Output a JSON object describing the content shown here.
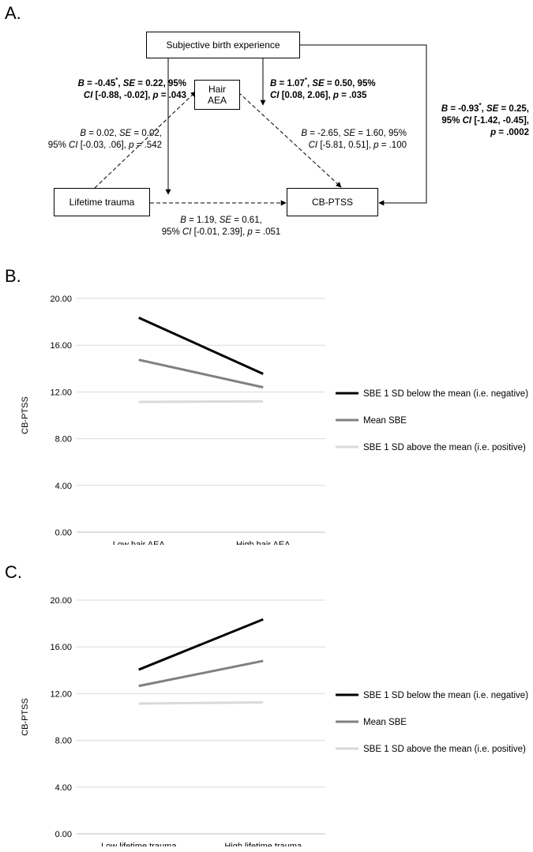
{
  "panel_a": {
    "label": "A.",
    "nodes": {
      "subjective_birth_experience": "Subjective birth experience",
      "hair_aea_line1": "Hair",
      "hair_aea_line2": "AEA",
      "lifetime_trauma": "Lifetime trauma",
      "cb_ptss": "CB-PTSS"
    },
    "paths": {
      "sbe_moderation_a": [
        "B = -0.45*, SE = 0.22, 95%",
        "CI [-0.88, -0.02], p = .043"
      ],
      "sbe_moderation_b": [
        "B = 1.07*, SE = 0.50, 95%",
        "CI [0.08, 2.06], p = .035"
      ],
      "sbe_direct": [
        "B = -0.93*, SE = 0.25,",
        "95% CI [-1.42, -0.45],",
        "p = .0002"
      ],
      "trauma_to_aea": [
        "B = 0.02, SE = 0.02,",
        "95% CI [-0.03, .06], p = .542"
      ],
      "aea_to_ptss": [
        "B = -2.65, SE = 1.60, 95%",
        "CI [-5.81, 0.51], p = .100"
      ],
      "trauma_to_ptss": [
        "B = 1.19, SE = 0.61,",
        "95% CI [-0.01, 2.39], p = .051"
      ]
    }
  },
  "chart_data": [
    {
      "label": "B.",
      "type": "line",
      "categories": [
        "Low hair AEA",
        "High hair AEA"
      ],
      "ylabel": "CB-PTSS",
      "ylim": [
        0,
        20
      ],
      "yticks": [
        "0.00",
        "4.00",
        "8.00",
        "12.00",
        "16.00",
        "20.00"
      ],
      "grid": true,
      "legend_position": "right",
      "series": [
        {
          "name": "SBE 1 SD below the mean (i.e. negative)",
          "values": [
            18.35,
            13.55
          ],
          "color": "#000000"
        },
        {
          "name": "Mean SBE",
          "values": [
            14.75,
            12.4
          ],
          "color": "#808080"
        },
        {
          "name": "SBE 1 SD above the mean (i.e. positive)",
          "values": [
            11.15,
            11.2
          ],
          "color": "#d9d9d9"
        }
      ]
    },
    {
      "label": "C.",
      "type": "line",
      "categories": [
        "Low lifetime trauma",
        "High lifetime trauma"
      ],
      "ylabel": "CB-PTSS",
      "ylim": [
        0,
        20
      ],
      "yticks": [
        "0.00",
        "4.00",
        "8.00",
        "12.00",
        "16.00",
        "20.00"
      ],
      "grid": true,
      "legend_position": "right",
      "series": [
        {
          "name": "SBE 1 SD below the mean (i.e. negative)",
          "values": [
            14.05,
            18.35
          ],
          "color": "#000000"
        },
        {
          "name": "Mean SBE",
          "values": [
            12.65,
            14.8
          ],
          "color": "#808080"
        },
        {
          "name": "SBE 1 SD above the mean (i.e. positive)",
          "values": [
            11.15,
            11.25
          ],
          "color": "#d9d9d9"
        }
      ]
    }
  ]
}
